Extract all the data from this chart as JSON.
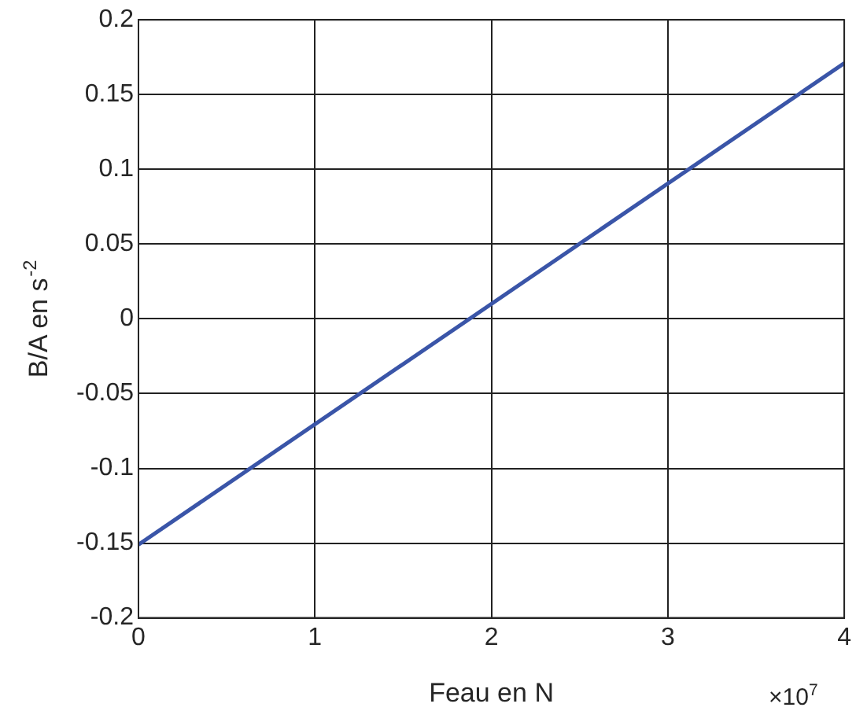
{
  "chart_data": {
    "type": "line",
    "xlabel": "Feau en N",
    "ylabel": "B/A en s$^{-2}$",
    "annotations": [
      "×10$^{7}$"
    ],
    "x": [
      0,
      4
    ],
    "series": [
      {
        "color": "#3a55a8",
        "values": [
          -0.151,
          0.171
        ]
      }
    ],
    "xlim": [
      0,
      4
    ],
    "ylim": [
      -0.2,
      0.2
    ],
    "xticks": [
      0,
      1,
      2,
      3,
      4
    ],
    "yticks": [
      -0.2,
      -0.15,
      -0.1,
      -0.05,
      0,
      0.05,
      0.1,
      0.15,
      0.2
    ],
    "grid": true,
    "legend": false,
    "marker": "none",
    "line_style": "solid"
  }
}
